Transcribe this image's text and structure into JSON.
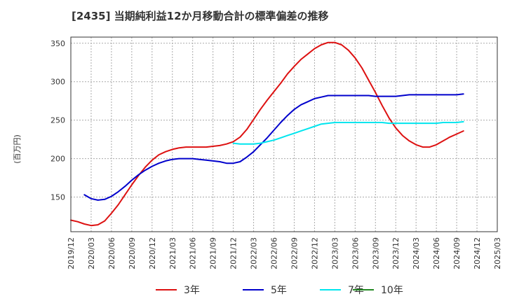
{
  "chart_data": {
    "type": "line",
    "title": "[2435]  当期純利益12か月移動合計の標準偏差の推移",
    "ylabel": "(百万円)",
    "xlabel": "",
    "ylim": [
      105,
      358
    ],
    "y_ticks": [
      150,
      200,
      250,
      300,
      350
    ],
    "x_tick_labels": [
      "2019/12",
      "2020/03",
      "2020/06",
      "2020/09",
      "2020/12",
      "2021/03",
      "2021/06",
      "2021/09",
      "2021/12",
      "2022/03",
      "2022/06",
      "2022/09",
      "2022/12",
      "2023/03",
      "2023/06",
      "2023/09",
      "2023/12",
      "2024/03",
      "2024/06",
      "2024/09",
      "2024/12",
      "2025/03"
    ],
    "grid": true,
    "legend_position": "bottom",
    "series": [
      {
        "name": "3年",
        "color": "#dd1111",
        "points": [
          [
            "2019/12",
            120
          ],
          [
            "2020/01",
            118
          ],
          [
            "2020/02",
            115
          ],
          [
            "2020/03",
            113
          ],
          [
            "2020/04",
            114
          ],
          [
            "2020/05",
            119
          ],
          [
            "2020/06",
            129
          ],
          [
            "2020/07",
            140
          ],
          [
            "2020/08",
            153
          ],
          [
            "2020/09",
            166
          ],
          [
            "2020/10",
            178
          ],
          [
            "2020/11",
            189
          ],
          [
            "2020/12",
            198
          ],
          [
            "2021/01",
            205
          ],
          [
            "2021/02",
            209
          ],
          [
            "2021/03",
            212
          ],
          [
            "2021/04",
            214
          ],
          [
            "2021/05",
            215
          ],
          [
            "2021/06",
            215
          ],
          [
            "2021/07",
            215
          ],
          [
            "2021/08",
            215
          ],
          [
            "2021/09",
            216
          ],
          [
            "2021/10",
            217
          ],
          [
            "2021/11",
            219
          ],
          [
            "2021/12",
            222
          ],
          [
            "2022/01",
            228
          ],
          [
            "2022/02",
            238
          ],
          [
            "2022/03",
            251
          ],
          [
            "2022/04",
            264
          ],
          [
            "2022/05",
            276
          ],
          [
            "2022/06",
            287
          ],
          [
            "2022/07",
            298
          ],
          [
            "2022/08",
            310
          ],
          [
            "2022/09",
            320
          ],
          [
            "2022/10",
            329
          ],
          [
            "2022/11",
            336
          ],
          [
            "2022/12",
            343
          ],
          [
            "2023/01",
            348
          ],
          [
            "2023/02",
            351
          ],
          [
            "2023/03",
            351
          ],
          [
            "2023/04",
            348
          ],
          [
            "2023/05",
            341
          ],
          [
            "2023/06",
            331
          ],
          [
            "2023/07",
            318
          ],
          [
            "2023/08",
            302
          ],
          [
            "2023/09",
            286
          ],
          [
            "2023/10",
            269
          ],
          [
            "2023/11",
            253
          ],
          [
            "2023/12",
            240
          ],
          [
            "2024/01",
            230
          ],
          [
            "2024/02",
            223
          ],
          [
            "2024/03",
            218
          ],
          [
            "2024/04",
            215
          ],
          [
            "2024/05",
            215
          ],
          [
            "2024/06",
            218
          ],
          [
            "2024/07",
            223
          ],
          [
            "2024/08",
            228
          ],
          [
            "2024/09",
            232
          ],
          [
            "2024/10",
            236
          ]
        ]
      },
      {
        "name": "5年",
        "color": "#0000cc",
        "points": [
          [
            "2020/02",
            153
          ],
          [
            "2020/03",
            148
          ],
          [
            "2020/04",
            146
          ],
          [
            "2020/05",
            147
          ],
          [
            "2020/06",
            151
          ],
          [
            "2020/07",
            157
          ],
          [
            "2020/08",
            164
          ],
          [
            "2020/09",
            172
          ],
          [
            "2020/10",
            179
          ],
          [
            "2020/11",
            185
          ],
          [
            "2020/12",
            190
          ],
          [
            "2021/01",
            194
          ],
          [
            "2021/02",
            197
          ],
          [
            "2021/03",
            199
          ],
          [
            "2021/04",
            200
          ],
          [
            "2021/05",
            200
          ],
          [
            "2021/06",
            200
          ],
          [
            "2021/07",
            199
          ],
          [
            "2021/08",
            198
          ],
          [
            "2021/09",
            197
          ],
          [
            "2021/10",
            196
          ],
          [
            "2021/11",
            194
          ],
          [
            "2021/12",
            194
          ],
          [
            "2022/01",
            196
          ],
          [
            "2022/02",
            202
          ],
          [
            "2022/03",
            209
          ],
          [
            "2022/04",
            218
          ],
          [
            "2022/05",
            227
          ],
          [
            "2022/06",
            237
          ],
          [
            "2022/07",
            247
          ],
          [
            "2022/08",
            256
          ],
          [
            "2022/09",
            264
          ],
          [
            "2022/10",
            270
          ],
          [
            "2022/11",
            274
          ],
          [
            "2022/12",
            278
          ],
          [
            "2023/01",
            280
          ],
          [
            "2023/02",
            282
          ],
          [
            "2023/03",
            282
          ],
          [
            "2023/04",
            282
          ],
          [
            "2023/05",
            282
          ],
          [
            "2023/06",
            282
          ],
          [
            "2023/07",
            282
          ],
          [
            "2023/08",
            282
          ],
          [
            "2023/09",
            281
          ],
          [
            "2023/10",
            281
          ],
          [
            "2023/11",
            281
          ],
          [
            "2023/12",
            281
          ],
          [
            "2024/01",
            282
          ],
          [
            "2024/02",
            283
          ],
          [
            "2024/03",
            283
          ],
          [
            "2024/04",
            283
          ],
          [
            "2024/05",
            283
          ],
          [
            "2024/06",
            283
          ],
          [
            "2024/07",
            283
          ],
          [
            "2024/08",
            283
          ],
          [
            "2024/09",
            283
          ],
          [
            "2024/10",
            284
          ]
        ]
      },
      {
        "name": "7年",
        "color": "#00e5ee",
        "points": [
          [
            "2021/12",
            220
          ],
          [
            "2022/01",
            219
          ],
          [
            "2022/02",
            219
          ],
          [
            "2022/03",
            219
          ],
          [
            "2022/04",
            220
          ],
          [
            "2022/05",
            222
          ],
          [
            "2022/06",
            224
          ],
          [
            "2022/07",
            227
          ],
          [
            "2022/08",
            230
          ],
          [
            "2022/09",
            233
          ],
          [
            "2022/10",
            236
          ],
          [
            "2022/11",
            239
          ],
          [
            "2022/12",
            242
          ],
          [
            "2023/01",
            245
          ],
          [
            "2023/02",
            246
          ],
          [
            "2023/03",
            247
          ],
          [
            "2023/04",
            247
          ],
          [
            "2023/05",
            247
          ],
          [
            "2023/06",
            247
          ],
          [
            "2023/07",
            247
          ],
          [
            "2023/08",
            247
          ],
          [
            "2023/09",
            247
          ],
          [
            "2023/10",
            247
          ],
          [
            "2023/11",
            246
          ],
          [
            "2023/12",
            246
          ],
          [
            "2024/01",
            246
          ],
          [
            "2024/02",
            246
          ],
          [
            "2024/03",
            246
          ],
          [
            "2024/04",
            246
          ],
          [
            "2024/05",
            246
          ],
          [
            "2024/06",
            246
          ],
          [
            "2024/07",
            247
          ],
          [
            "2024/08",
            247
          ],
          [
            "2024/09",
            247
          ],
          [
            "2024/10",
            248
          ]
        ]
      },
      {
        "name": "10年",
        "color": "#228822",
        "points": []
      }
    ]
  }
}
